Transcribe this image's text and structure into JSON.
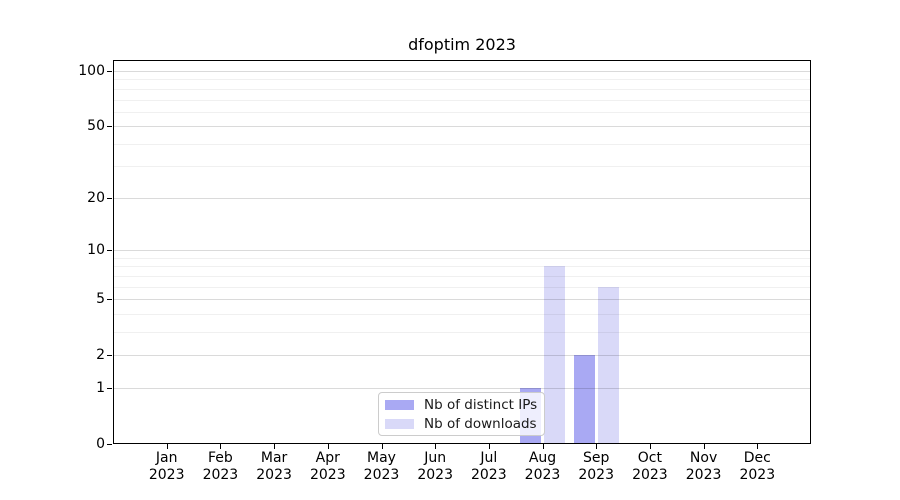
{
  "chart_data": {
    "type": "bar",
    "title": "dfoptim 2023",
    "year": "2023",
    "months": [
      "Jan",
      "Feb",
      "Mar",
      "Apr",
      "May",
      "Jun",
      "Jul",
      "Aug",
      "Sep",
      "Oct",
      "Nov",
      "Dec"
    ],
    "series": [
      {
        "name": "Nb of distinct IPs",
        "color": "#a9a9f3",
        "values": [
          0,
          0,
          0,
          0,
          0,
          0,
          0,
          1,
          2,
          0,
          0,
          0
        ]
      },
      {
        "name": "Nb of downloads",
        "color": "#d9d9f8",
        "values": [
          0,
          0,
          0,
          0,
          0,
          0,
          0,
          8,
          6,
          0,
          0,
          0
        ]
      }
    ],
    "y_axis": {
      "scale": "log10(1+x)",
      "major_ticks": [
        0,
        1,
        2,
        5,
        10,
        20,
        50,
        100
      ],
      "minor_gridlines": [
        3,
        4,
        6,
        7,
        8,
        9,
        30,
        40,
        60,
        70,
        80,
        90
      ],
      "ylim": [
        0,
        114.7
      ]
    },
    "x_axis": {
      "tick_count": 12
    },
    "grid": true,
    "legend": {
      "position": "lower center"
    }
  }
}
